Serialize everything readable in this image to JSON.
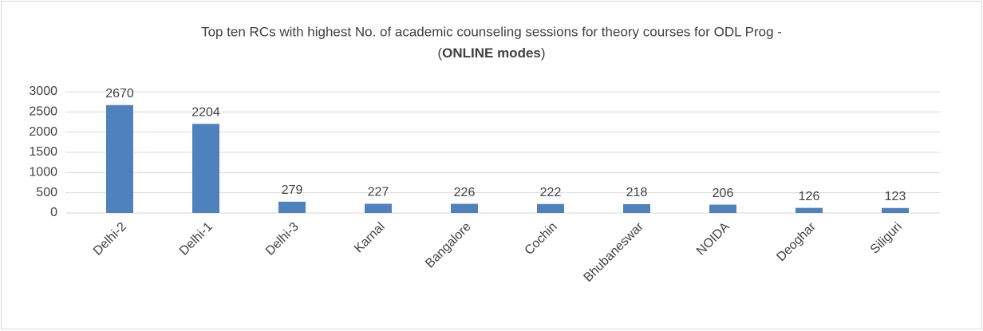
{
  "chart_data": {
    "type": "bar",
    "title": [
      "Top ten RCs with highest No. of academic counseling sessions for theory courses for ODL Prog -",
      "(",
      "ONLINE modes",
      ")"
    ],
    "categories": [
      "Delhi-2",
      "Delhi-1",
      "Delhi-3",
      "Karnal",
      "Bangalore",
      "Cochin",
      "Bhubaneswar",
      "NOIDA",
      "Deoghar",
      "Siliguri"
    ],
    "values": [
      2670,
      2204,
      279,
      227,
      226,
      222,
      218,
      206,
      126,
      123
    ],
    "color": "#4f81bd",
    "ylim": [
      0,
      3000
    ],
    "yticks": [
      0,
      500,
      1000,
      1500,
      2000,
      2500,
      3000
    ],
    "grid": true
  }
}
